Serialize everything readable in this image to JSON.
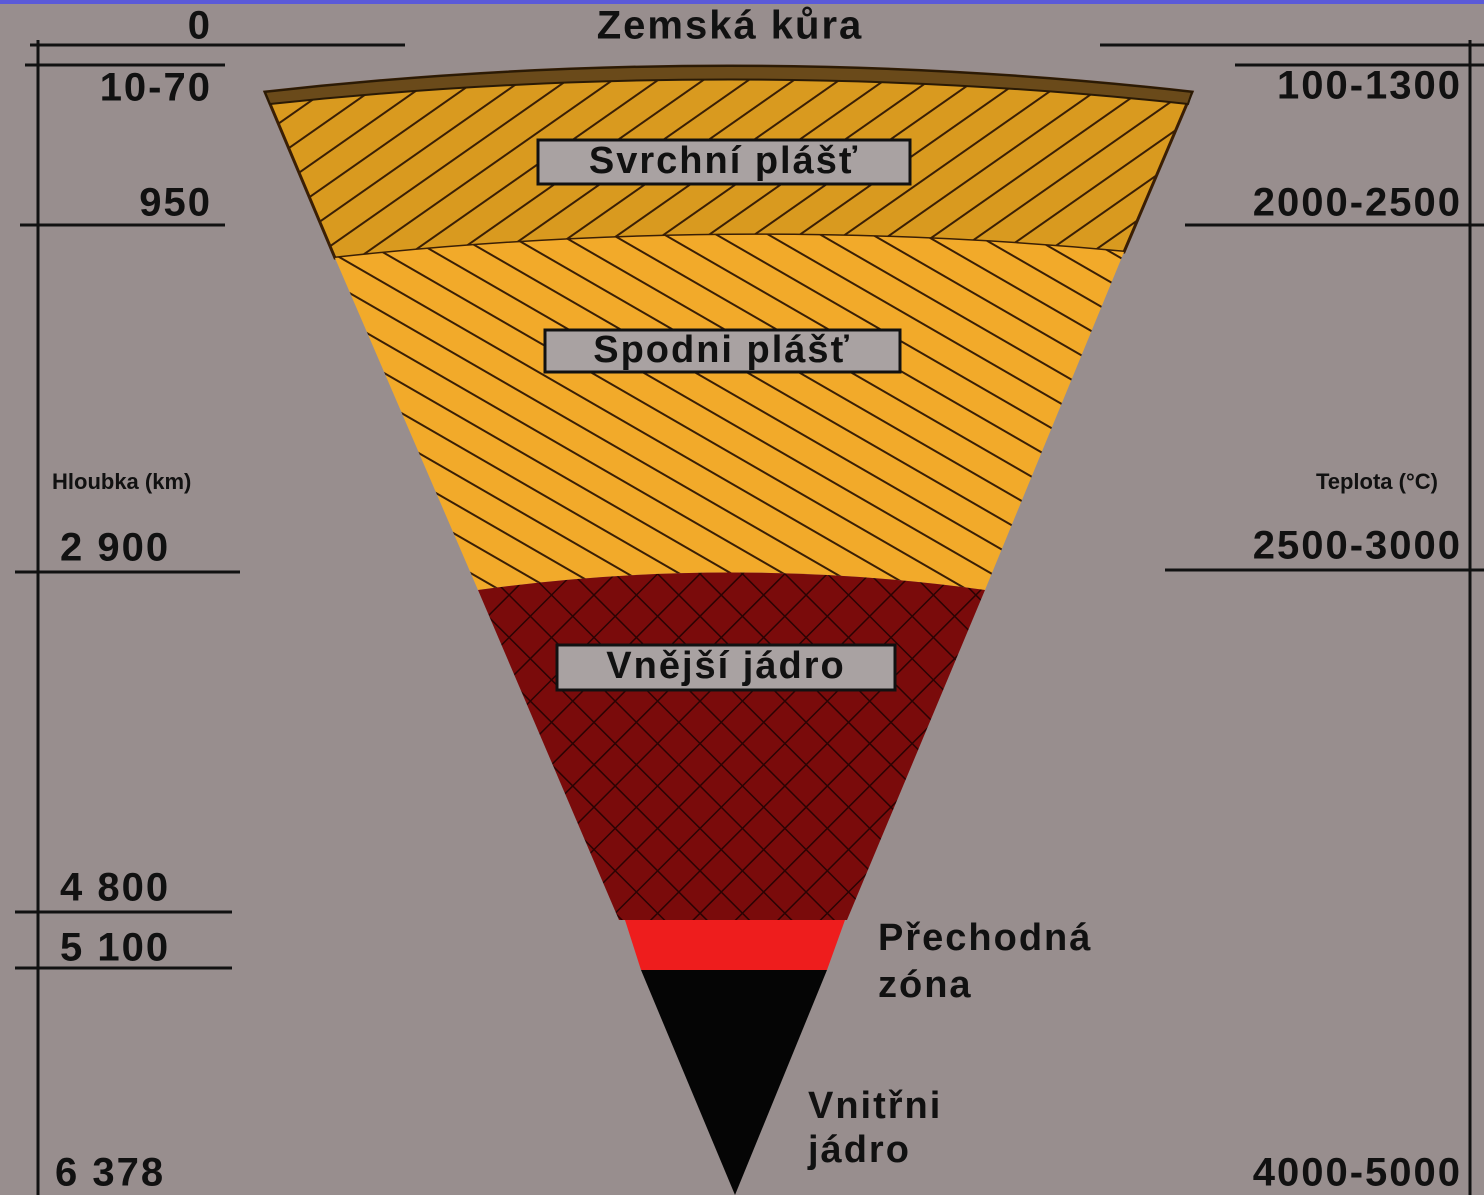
{
  "header": {
    "title": "Zemská kůra"
  },
  "depth": {
    "label": "Hloubka (km)",
    "ticks": [
      "0",
      "10-70",
      "950",
      "2 900",
      "4 800",
      "5 100",
      "6 378"
    ]
  },
  "temperature": {
    "label": "Teplota (°C)",
    "ticks": [
      "100-1300",
      "2000-2500",
      "2500-3000",
      "4000-5000"
    ]
  },
  "layers": [
    {
      "label": "Svrchní plášť"
    },
    {
      "label": "Spodni plášť"
    },
    {
      "label": "Vnější jádro"
    },
    {
      "label": [
        "Přechodná",
        "zóna"
      ]
    },
    {
      "label": [
        "Vnitřni",
        "jádro"
      ]
    }
  ]
}
